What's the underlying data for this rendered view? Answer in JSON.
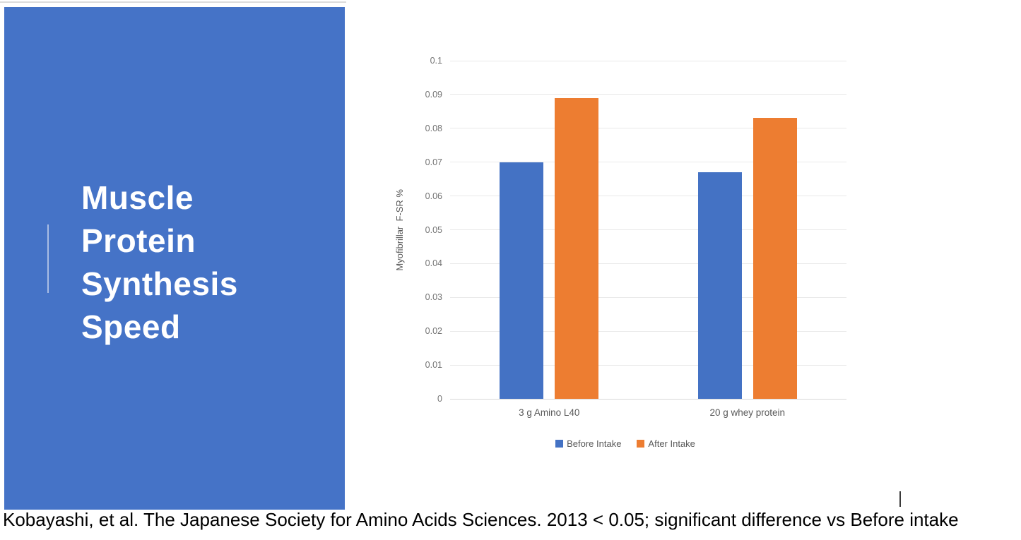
{
  "slide": {
    "panel": {
      "title_lines": [
        "Muscle",
        "Protein",
        "Synthesis",
        "Speed"
      ],
      "bg_color": "#4573C7",
      "accent_line_color": "#AABDE4",
      "title_color": "#FFFFFF"
    },
    "citation": "Kobayashi, et al. The Japanese Society for Amino Acids Sciences. 2013 < 0.05; significant difference vs Before intake"
  },
  "chart_data": {
    "type": "bar",
    "title": "",
    "xlabel": "",
    "ylabel": "Myofibrillar  F-SR %",
    "categories": [
      "3 g Amino L40",
      "20 g whey protein"
    ],
    "series": [
      {
        "name": "Before Intake",
        "color": "#4472C4",
        "values": [
          0.07,
          0.067
        ]
      },
      {
        "name": "After Intake",
        "color": "#ED7D31",
        "values": [
          0.089,
          0.083
        ]
      }
    ],
    "ylim": [
      0,
      0.1
    ],
    "ytick_step": 0.01,
    "yticks": [
      "0",
      "0.01",
      "0.02",
      "0.03",
      "0.04",
      "0.05",
      "0.06",
      "0.07",
      "0.08",
      "0.09",
      "0.1"
    ],
    "grid": true,
    "legend_position": "bottom",
    "colors": {
      "gridline": "#E9E9E9",
      "axis_text": "#595959",
      "tick_text": "#737373"
    }
  }
}
